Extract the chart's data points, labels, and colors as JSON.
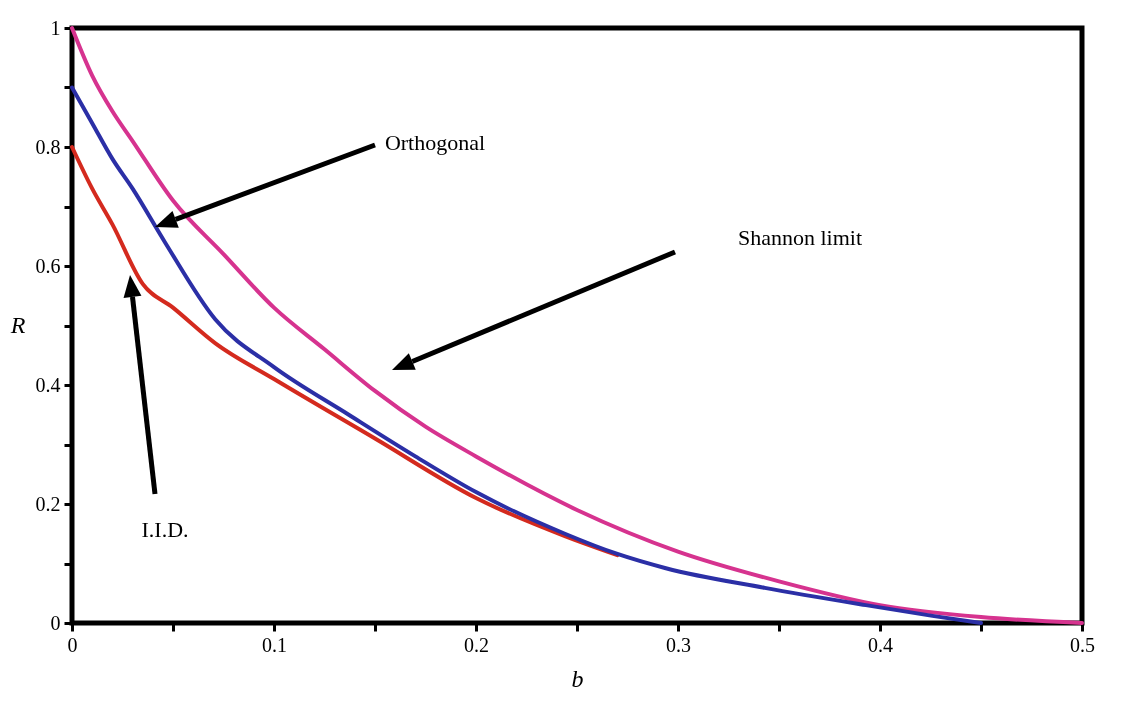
{
  "chart_data": {
    "type": "line",
    "xlabel": "b",
    "ylabel": "R",
    "xlim": [
      0,
      0.5
    ],
    "ylim": [
      0,
      1
    ],
    "xticks": [
      0,
      {
        "value": 0.05,
        "label": null
      },
      0.1,
      {
        "value": 0.15,
        "label": null
      },
      0.2,
      {
        "value": 0.25,
        "label": null
      },
      0.3,
      {
        "value": 0.35,
        "label": null
      },
      0.4,
      {
        "value": 0.45,
        "label": null
      },
      0.5
    ],
    "yticks": [
      0,
      {
        "value": 0.1,
        "label": null
      },
      0.2,
      {
        "value": 0.3,
        "label": null
      },
      0.4,
      {
        "value": 0.5,
        "label": null
      },
      0.6,
      {
        "value": 0.7,
        "label": null
      },
      0.8,
      {
        "value": 0.9,
        "label": null
      },
      1
    ],
    "line_style": "solid",
    "series": [
      {
        "color": "#d6338f",
        "x": [
          0,
          0.01,
          0.02,
          0.03,
          0.05,
          0.075,
          0.1,
          0.125,
          0.15,
          0.175,
          0.2,
          0.25,
          0.3,
          0.35,
          0.4,
          0.45,
          0.5
        ],
        "values": [
          1,
          0.92,
          0.86,
          0.81,
          0.71,
          0.62,
          0.53,
          0.46,
          0.39,
          0.33,
          0.28,
          0.19,
          0.12,
          0.07,
          0.03,
          0.01,
          0
        ]
      },
      {
        "color": "#d42a1e",
        "x": [
          0,
          0.01,
          0.02,
          0.035,
          0.05,
          0.071,
          0.1,
          0.15,
          0.2,
          0.244,
          0.27
        ],
        "values": [
          0.8,
          0.73,
          0.67,
          0.57,
          0.53,
          0.47,
          0.41,
          0.31,
          0.21,
          0.146,
          0.114
        ]
      },
      {
        "color": "#2b2fa6",
        "x": [
          0,
          0.01,
          0.02,
          0.03,
          0.046,
          0.071,
          0.1,
          0.137,
          0.17,
          0.2,
          0.244,
          0.27,
          0.294,
          0.343,
          0.393,
          0.426,
          0.45
        ],
        "values": [
          0.9,
          0.84,
          0.78,
          0.73,
          0.64,
          0.51,
          0.43,
          0.35,
          0.28,
          0.22,
          0.15,
          0.116,
          0.092,
          0.059,
          0.03,
          0.012,
          0
        ]
      }
    ],
    "annotations": [
      "Orthogonal",
      "Shannon limit",
      "I.I.D."
    ]
  }
}
